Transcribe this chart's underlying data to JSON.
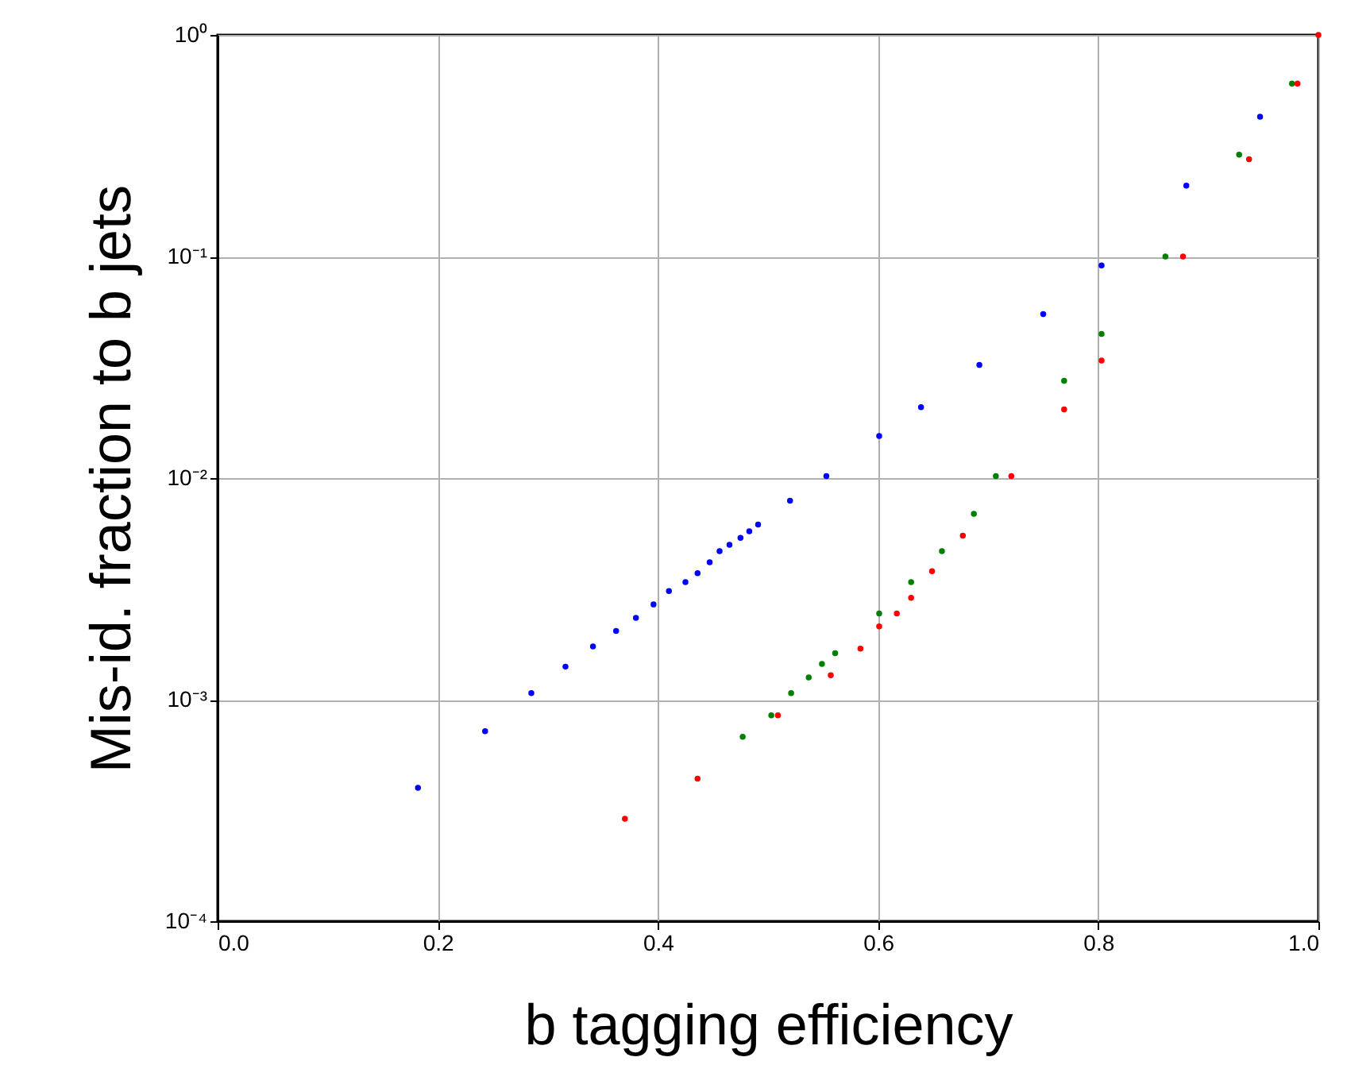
{
  "chart_data": {
    "type": "scatter",
    "xlabel": "b tagging efficiency",
    "ylabel": "Mis-id. fraction to b jets",
    "log": "y",
    "grid": true,
    "marker": "circle",
    "xlim": [
      0,
      1
    ],
    "xticks": [
      {
        "value": 0,
        "label": "0.0"
      },
      {
        "value": 0.2,
        "label": "0.2"
      },
      {
        "value": 0.4,
        "label": "0.4"
      },
      {
        "value": 0.6,
        "label": "0.6"
      },
      {
        "value": 0.8,
        "label": "0.8"
      },
      {
        "value": 1,
        "label": "1.0"
      }
    ],
    "ylim": [
      0.0001,
      1
    ],
    "yticks": [
      {
        "value": 0.0001,
        "label": "10⁻⁴"
      },
      {
        "value": 0.001,
        "label": "10⁻³"
      },
      {
        "value": 0.01,
        "label": "10⁻²"
      },
      {
        "value": 0.1,
        "label": "10⁻¹"
      },
      {
        "value": 1,
        "label": "10⁰"
      }
    ],
    "series": [
      {
        "color": "#0000ff",
        "x": [
          0.182,
          0.243,
          0.285,
          0.316,
          0.341,
          0.362,
          0.38,
          0.396,
          0.41,
          0.425,
          0.436,
          0.447,
          0.456,
          0.465,
          0.475,
          0.483,
          0.491,
          0.52,
          0.553,
          0.601,
          0.639,
          0.692,
          0.75,
          0.803,
          0.88,
          0.947
        ],
        "values": [
          0.0004,
          0.00072,
          0.00107,
          0.00141,
          0.00174,
          0.00204,
          0.00234,
          0.00269,
          0.00309,
          0.00339,
          0.00372,
          0.00417,
          0.00468,
          0.005,
          0.00537,
          0.00575,
          0.00617,
          0.0079,
          0.0102,
          0.0155,
          0.0209,
          0.0324,
          0.055,
          0.0912,
          0.209,
          0.427
        ]
      },
      {
        "color": "#008000",
        "x": [
          0.477,
          0.503,
          0.521,
          0.537,
          0.549,
          0.561,
          0.601,
          0.63,
          0.658,
          0.687,
          0.707,
          0.769,
          0.803,
          0.861,
          0.928,
          0.976
        ],
        "values": [
          0.00068,
          0.00085,
          0.00107,
          0.00126,
          0.00145,
          0.00162,
          0.00245,
          0.00339,
          0.00468,
          0.0069,
          0.0102,
          0.0275,
          0.0447,
          0.1,
          0.288,
          0.603
        ]
      },
      {
        "color": "#ff0000",
        "x": [
          0.37,
          0.436,
          0.509,
          0.557,
          0.584,
          0.601,
          0.617,
          0.63,
          0.649,
          0.677,
          0.721,
          0.769,
          0.803,
          0.877,
          0.937,
          0.981,
          1.0
        ],
        "values": [
          0.00029,
          0.00044,
          0.00085,
          0.00129,
          0.0017,
          0.00214,
          0.00245,
          0.00288,
          0.0038,
          0.0055,
          0.0102,
          0.0204,
          0.0339,
          0.1,
          0.275,
          0.603,
          1
        ]
      }
    ]
  }
}
